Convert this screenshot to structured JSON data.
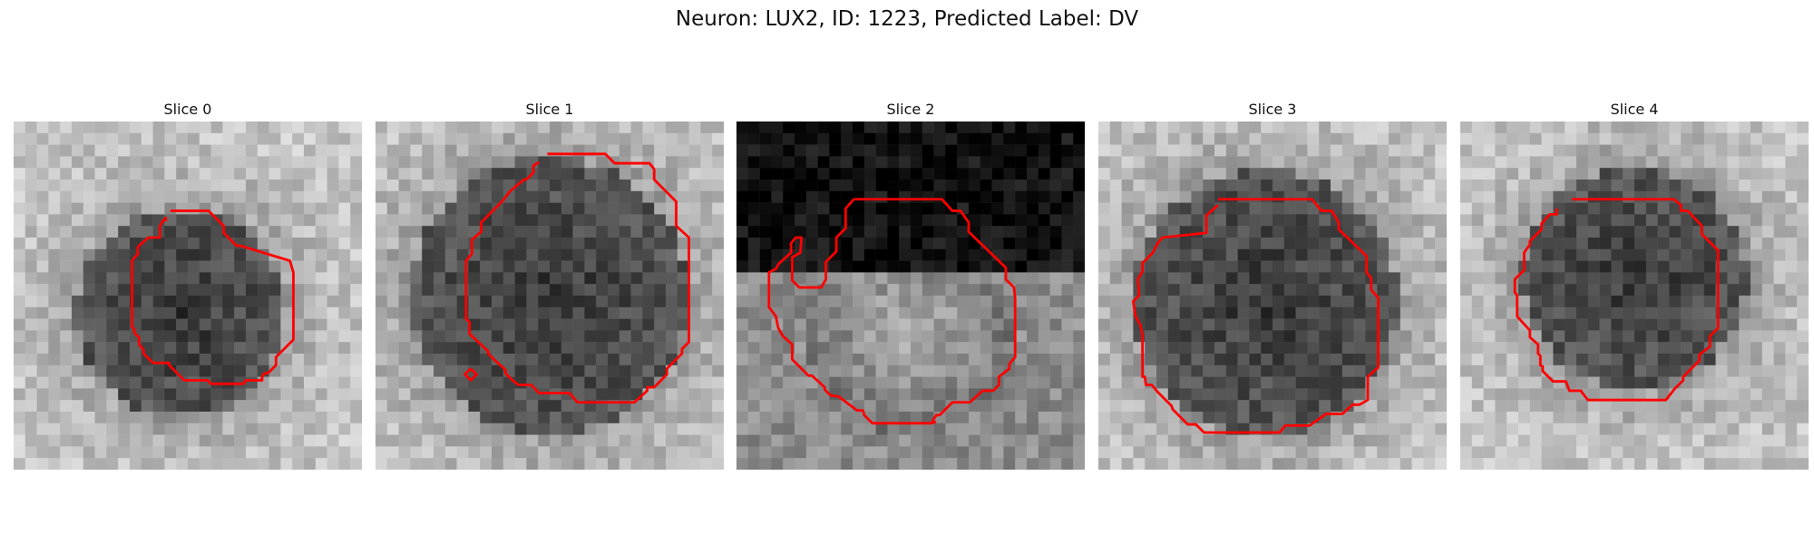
{
  "figure": {
    "title": "Neuron: LUX2, ID: 1223, Predicted Label: DV"
  },
  "contour_color": "#ff0000",
  "slices": [
    {
      "label": "Slice 0",
      "background": "light",
      "blob_center": [
        0.48,
        0.55
      ],
      "blob_radius": 0.3
    },
    {
      "label": "Slice 1",
      "background": "light",
      "blob_center": [
        0.5,
        0.5
      ],
      "blob_radius": 0.4
    },
    {
      "label": "Slice 2",
      "background": "dark-top",
      "blob_center": [
        0.5,
        0.6
      ],
      "blob_radius": 0.3
    },
    {
      "label": "Slice 3",
      "background": "light",
      "blob_center": [
        0.48,
        0.52
      ],
      "blob_radius": 0.38
    },
    {
      "label": "Slice 4",
      "background": "light",
      "blob_center": [
        0.5,
        0.45
      ],
      "blob_radius": 0.32
    }
  ]
}
